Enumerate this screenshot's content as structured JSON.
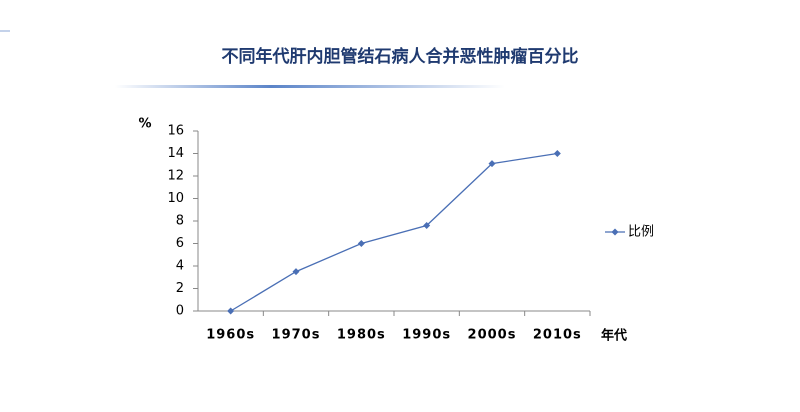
{
  "chart_data": {
    "type": "line",
    "title": "不同年代肝内胆管结石病人合并恶性肿瘤百分比",
    "y_label": "%",
    "x_label": "年代",
    "categories": [
      "1960s",
      "1970s",
      "1980s",
      "1990s",
      "2000s",
      "2010s"
    ],
    "series": [
      {
        "name": "比例",
        "color": "#4a6fb5",
        "values": [
          0,
          3.5,
          6,
          7.6,
          13.1,
          14
        ]
      }
    ],
    "ylim": [
      0,
      16
    ],
    "yticks": [
      0,
      2,
      4,
      6,
      8,
      10,
      12,
      14,
      16
    ],
    "grid": false,
    "legend": "right"
  }
}
